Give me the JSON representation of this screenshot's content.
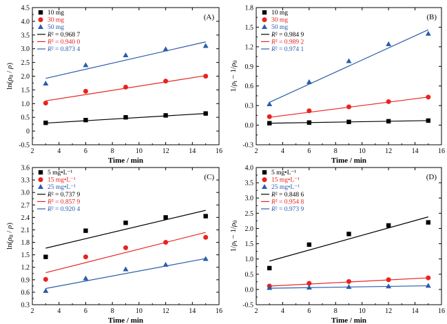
{
  "chart_data": [
    {
      "type": "scatter",
      "panel_label": "(A)",
      "xlabel": "Time / min",
      "ylabel": "ln(ρ0 / ρ)",
      "ylabel_parts": [
        "ln(",
        "ρ",
        "0",
        " / ",
        "ρ",
        ")"
      ],
      "xlim": [
        2,
        16
      ],
      "ylim": [
        -0.5,
        4.5
      ],
      "xticks": [
        "2",
        "4",
        "6",
        "8",
        "10",
        "12",
        "14",
        "16"
      ],
      "yticks": [
        "-0.5",
        "0",
        "0.5",
        "1.0",
        "1.5",
        "2.0",
        "2.5",
        "3.0",
        "3.5",
        "4.0",
        "4.5"
      ],
      "x": [
        3,
        6,
        9,
        12,
        15
      ],
      "series": [
        {
          "name": "10 mg",
          "marker": "square",
          "color": "#000000",
          "values": [
            0.3,
            0.4,
            0.5,
            0.57,
            0.64
          ],
          "fit": [
            0.29,
            0.64
          ],
          "r2_label": "R² = 0.968 7"
        },
        {
          "name": "30 mg",
          "marker": "circle",
          "color": "#e8231e",
          "values": [
            1.02,
            1.45,
            1.6,
            1.82,
            2.0
          ],
          "fit": [
            1.1,
            2.02
          ],
          "r2_label": "R² = 0.940 0"
        },
        {
          "name": "50 mg",
          "marker": "triangle",
          "color": "#2a5caa",
          "values": [
            1.73,
            2.4,
            2.76,
            2.98,
            3.1
          ],
          "fit": [
            1.92,
            3.25
          ],
          "r2_label": "R² = 0.873 4"
        }
      ]
    },
    {
      "type": "scatter",
      "panel_label": "(B)",
      "xlabel": "Time / min",
      "ylabel": "1/ρt − 1/ρ0",
      "ylabel_parts": [
        "1/",
        "ρ",
        "t",
        " − 1/",
        "ρ",
        "0"
      ],
      "xlim": [
        2,
        16
      ],
      "ylim": [
        -0.3,
        1.8
      ],
      "xticks": [
        "2",
        "4",
        "6",
        "8",
        "10",
        "12",
        "14",
        "16"
      ],
      "yticks": [
        "-0.3",
        "0.0",
        "0.3",
        "0.6",
        "0.9",
        "1.2",
        "1.5",
        "1.8"
      ],
      "x": [
        3,
        6,
        9,
        12,
        15
      ],
      "series": [
        {
          "name": "10 mg",
          "marker": "square",
          "color": "#000000",
          "values": [
            0.03,
            0.04,
            0.05,
            0.06,
            0.07
          ],
          "fit": [
            0.03,
            0.07
          ],
          "r2_label": "R² = 0.984 9"
        },
        {
          "name": "30 mg",
          "marker": "circle",
          "color": "#e8231e",
          "values": [
            0.13,
            0.22,
            0.28,
            0.36,
            0.43
          ],
          "fit": [
            0.12,
            0.43
          ],
          "r2_label": "R² = 0.989 2"
        },
        {
          "name": "50 mg",
          "marker": "triangle",
          "color": "#2a5caa",
          "values": [
            0.32,
            0.66,
            0.98,
            1.24,
            1.4
          ],
          "fit": [
            0.35,
            1.46
          ],
          "r2_label": "R² = 0.974 1"
        }
      ]
    },
    {
      "type": "scatter",
      "panel_label": "(C)",
      "xlabel": "Time / min",
      "ylabel": "ln(ρ0 / ρ)",
      "ylabel_parts": [
        "ln(",
        "ρ",
        "0",
        " / ",
        "ρ",
        ")"
      ],
      "xlim": [
        2,
        16
      ],
      "ylim": [
        0.3,
        3.6
      ],
      "xticks": [
        "2",
        "4",
        "6",
        "8",
        "10",
        "12",
        "14",
        "16"
      ],
      "yticks": [
        "0.3",
        "0.6",
        "0.9",
        "1.2",
        "1.5",
        "1.8",
        "2.1",
        "2.4",
        "2.7",
        "3.0",
        "3.3",
        "3.6"
      ],
      "x": [
        3,
        6,
        9,
        12,
        15
      ],
      "series": [
        {
          "name": "5 mg•L⁻¹",
          "marker": "square",
          "color": "#000000",
          "values": [
            1.45,
            2.08,
            2.27,
            2.4,
            2.43
          ],
          "fit": [
            1.66,
            2.57
          ],
          "r2_label": "R² = 0.737 9"
        },
        {
          "name": "15 mg•L⁻¹",
          "marker": "circle",
          "color": "#e8231e",
          "values": [
            0.91,
            1.45,
            1.67,
            1.8,
            1.92
          ],
          "fit": [
            1.07,
            2.04
          ],
          "r2_label": "R² = 0.857 9"
        },
        {
          "name": "25 mg•L⁻¹",
          "marker": "triangle",
          "color": "#2a5caa",
          "values": [
            0.63,
            0.93,
            1.15,
            1.26,
            1.4
          ],
          "fit": [
            0.69,
            1.41
          ],
          "r2_label": "R² = 0.920 4"
        }
      ]
    },
    {
      "type": "scatter",
      "panel_label": "(D)",
      "xlabel": "Time / min",
      "ylabel": "1/ρt − 1/ρ0",
      "ylabel_parts": [
        "1/",
        "ρ",
        "t",
        " − 1/",
        "ρ",
        "0"
      ],
      "xlim": [
        2,
        16
      ],
      "ylim": [
        -0.5,
        4.0
      ],
      "xticks": [
        "2",
        "4",
        "6",
        "8",
        "10",
        "12",
        "14",
        "16"
      ],
      "yticks": [
        "-0.5",
        "0.0",
        "0.5",
        "1.0",
        "1.5",
        "2.0",
        "2.5",
        "3.0",
        "3.5",
        "4.0"
      ],
      "x": [
        3,
        6,
        9,
        12,
        15
      ],
      "series": [
        {
          "name": "5 mg•L⁻¹",
          "marker": "square",
          "color": "#000000",
          "values": [
            0.7,
            1.47,
            1.82,
            2.1,
            2.2
          ],
          "fit": [
            0.93,
            2.38
          ],
          "r2_label": "R² = 0.848 6"
        },
        {
          "name": "15 mg•L⁻¹",
          "marker": "circle",
          "color": "#e8231e",
          "values": [
            0.11,
            0.2,
            0.26,
            0.32,
            0.38
          ],
          "fit": [
            0.11,
            0.38
          ],
          "r2_label": "R² = 0.954 8"
        },
        {
          "name": "25 mg•L⁻¹",
          "marker": "triangle",
          "color": "#2a5caa",
          "values": [
            0.05,
            0.06,
            0.08,
            0.1,
            0.12
          ],
          "fit": [
            0.04,
            0.12
          ],
          "r2_label": "R² = 0.973 9"
        }
      ]
    }
  ]
}
